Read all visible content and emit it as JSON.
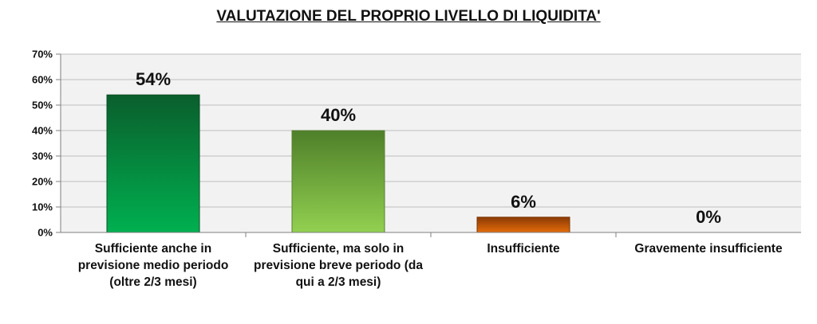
{
  "chart_data": {
    "type": "bar",
    "title": "VALUTAZIONE DEL PROPRIO LIVELLO DI LIQUIDITA'",
    "categories": [
      "Sufficiente anche in previsione medio periodo (oltre 2/3 mesi)",
      "Sufficiente, ma solo in previsione breve periodo (da qui a 2/3 mesi)",
      "Insufficiente",
      "Gravemente insufficiente"
    ],
    "values": [
      54,
      40,
      6,
      0
    ],
    "data_labels": [
      "54%",
      "40%",
      "6%",
      "0%"
    ],
    "ylim": [
      0,
      70
    ],
    "yticks": [
      0,
      10,
      20,
      30,
      40,
      50,
      60,
      70
    ],
    "ytick_labels": [
      "0%",
      "10%",
      "20%",
      "30%",
      "40%",
      "50%",
      "60%",
      "70%"
    ],
    "grid": true,
    "colors": {
      "bar_1": [
        "#0a5e2c",
        "#00b050"
      ],
      "bar_2": [
        "#4e7f2a",
        "#92d050"
      ],
      "bar_3": [
        "#8a3a05",
        "#e36c0a"
      ],
      "bar_4": [
        "#666666",
        "#999999"
      ],
      "plot_background": "#f2f2f2",
      "gridline": "#bfbfbf"
    }
  }
}
